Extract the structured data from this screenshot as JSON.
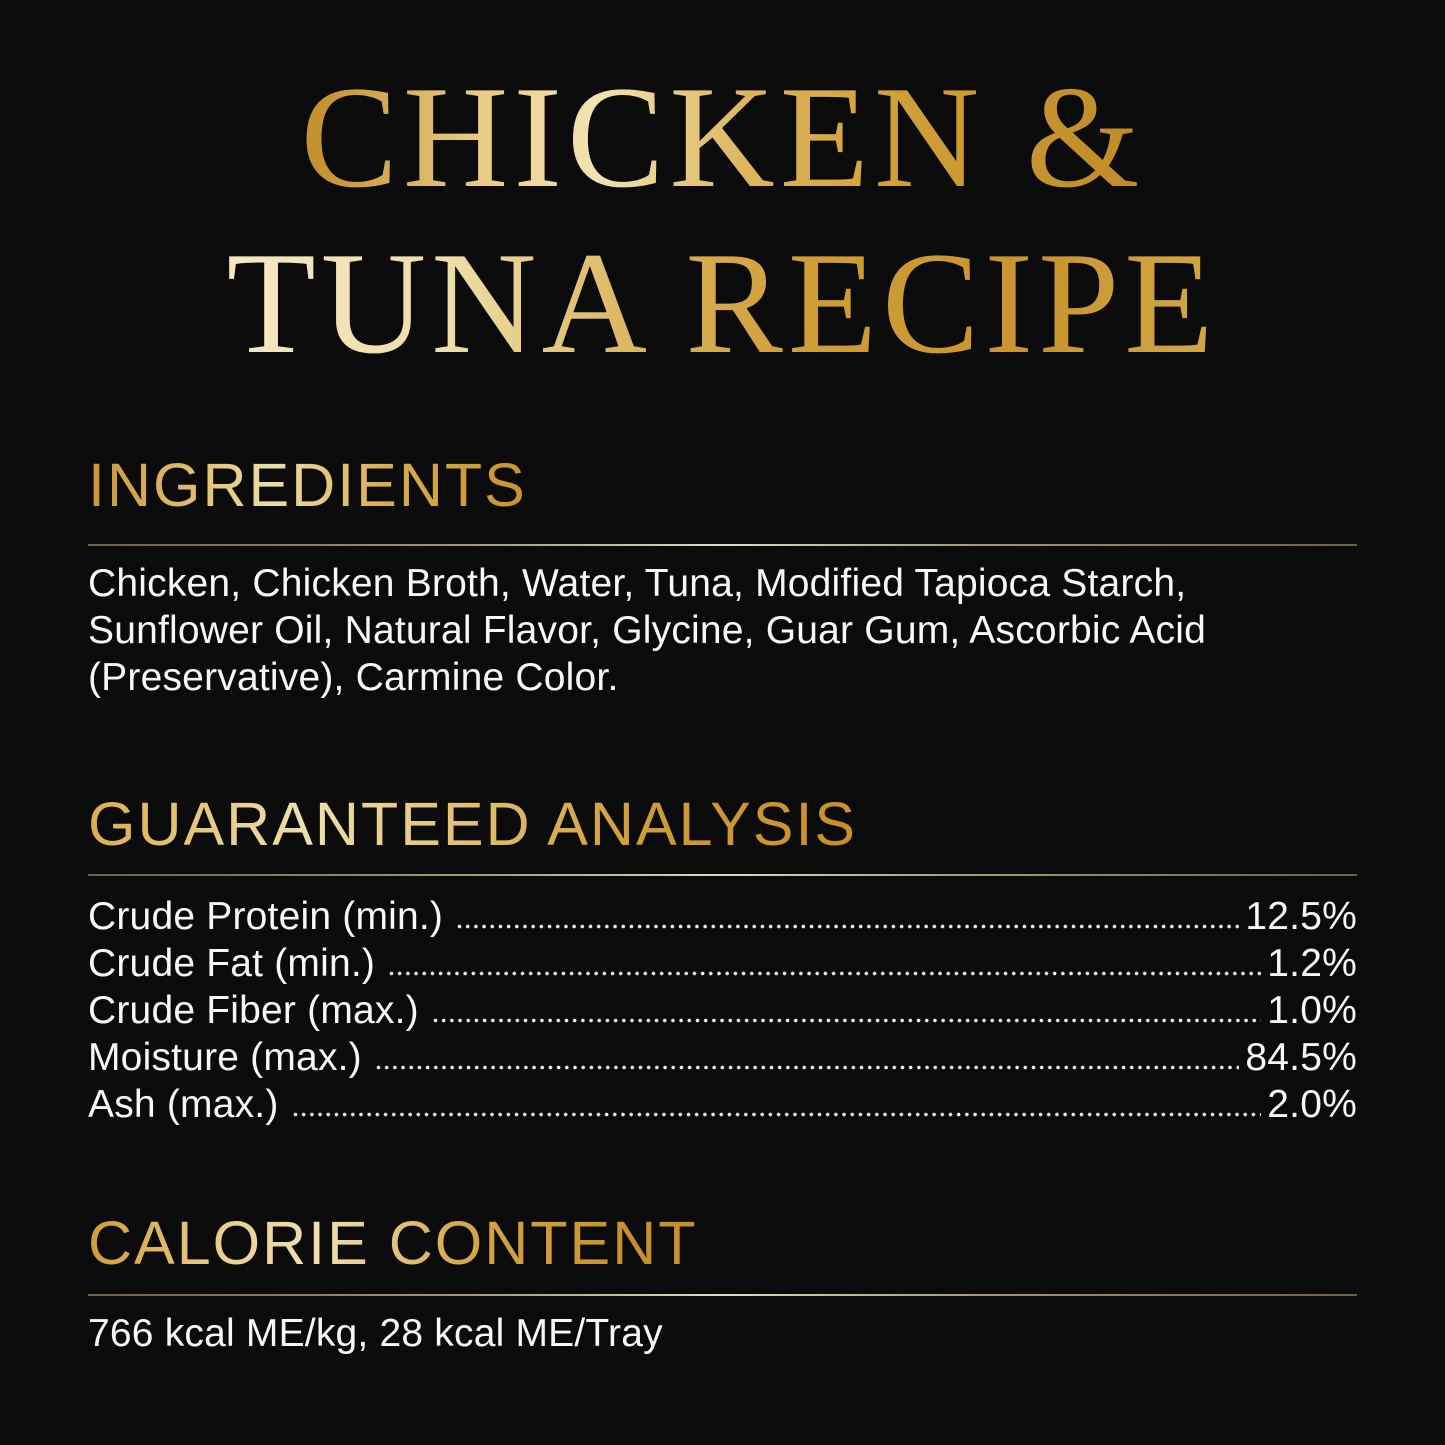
{
  "title": {
    "line1": "CHICKEN &",
    "line2": "TUNA RECIPE"
  },
  "sections": {
    "ingredients": {
      "heading": "INGREDIENTS",
      "text": "Chicken, Chicken Broth, Water, Tuna, Modified Tapioca Starch,\nSunflower Oil, Natural Flavor, Glycine, Guar Gum, Ascorbic Acid\n(Preservative), Carmine Color."
    },
    "guaranteed_analysis": {
      "heading": "GUARANTEED ANALYSIS",
      "rows": [
        {
          "label": "Crude Protein (min.)",
          "value": "12.5%"
        },
        {
          "label": "Crude Fat (min.)",
          "value": "1.2%"
        },
        {
          "label": "Crude Fiber (max.)",
          "value": "1.0%"
        },
        {
          "label": "Moisture (max.)",
          "value": "84.5%"
        },
        {
          "label": "Ash (max.)",
          "value": "2.0%"
        }
      ]
    },
    "calorie_content": {
      "heading": "CALORIE CONTENT",
      "text": "766 kcal ME/kg, 28 kcal ME/Tray"
    }
  },
  "colors": {
    "background": "#0b0b0b",
    "gold": "#cf9c36",
    "cream": "#f2e3b2",
    "rule_tan": "#a4996e",
    "text": "#f7f7f3"
  }
}
